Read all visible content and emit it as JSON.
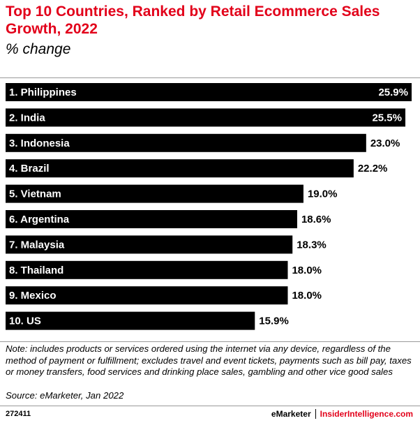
{
  "chart_data": {
    "type": "bar",
    "orientation": "horizontal",
    "title": "Top 10 Countries, Ranked by Retail Ecommerce Sales Growth, 2022",
    "subtitle": "% change",
    "categories": [
      "1. Philippines",
      "2. India",
      "3. Indonesia",
      "4. Brazil",
      "5. Vietnam",
      "6. Argentina",
      "7. Malaysia",
      "8. Thailand",
      "9. Mexico",
      "10. US"
    ],
    "values": [
      25.9,
      25.5,
      23.0,
      22.2,
      19.0,
      18.6,
      18.3,
      18.0,
      18.0,
      15.9
    ],
    "value_labels": [
      "25.9%",
      "25.5%",
      "23.0%",
      "22.2%",
      "19.0%",
      "18.6%",
      "18.3%",
      "18.0%",
      "18.0%",
      "15.9%"
    ],
    "color": "#000000",
    "title_color": "#e2001a",
    "note": "Note: includes products or services ordered using the internet via any device, regardless of the method of payment or fulfillment; excludes travel and event tickets, payments such as bill pay, taxes or money transfers, food services and drinking place sales, gambling and other vice good sales",
    "source": "Source: eMarketer, Jan 2022",
    "chart_id": "272411",
    "brand": "eMarketer",
    "brand_site": "InsiderIntelligence.com"
  }
}
